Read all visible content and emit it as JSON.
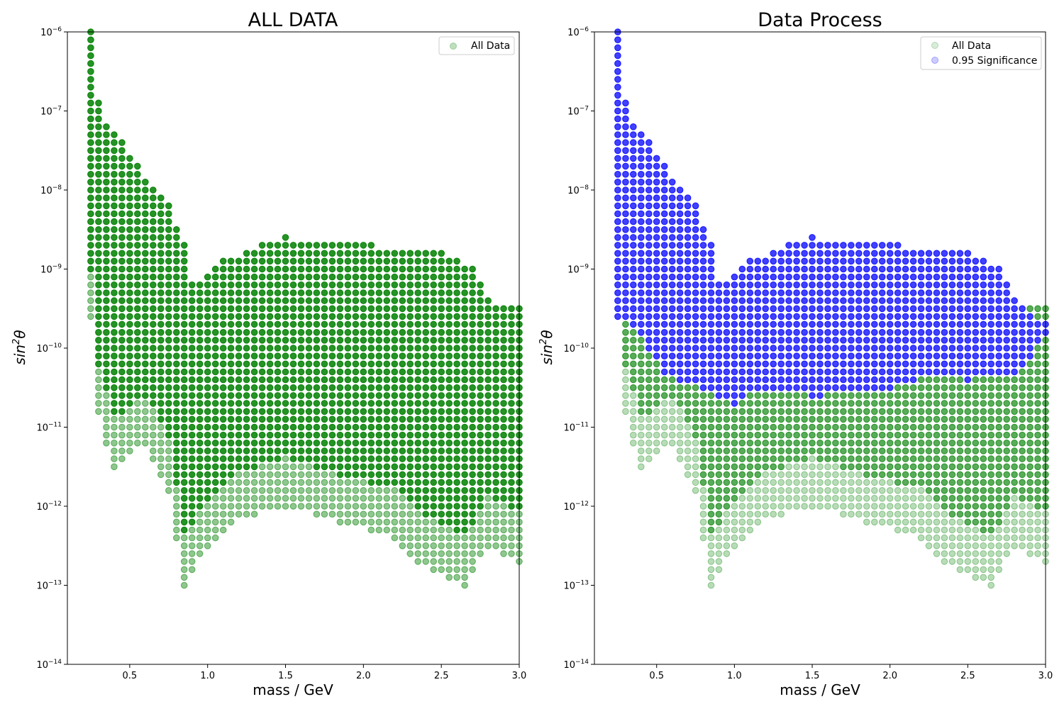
{
  "chart_data": [
    {
      "type": "scatter",
      "title": "ALL DATA",
      "xlabel": "mass / GeV",
      "ylabel": "sin²θ",
      "ylabel_parts": {
        "base": "sin",
        "sup": "2",
        "tail": "θ"
      },
      "yscale": "log",
      "xlim": [
        0.1,
        3.0
      ],
      "ylim": [
        1e-14,
        1e-06
      ],
      "xticks": [
        0.5,
        1.0,
        1.5,
        2.0,
        2.5,
        3.0
      ],
      "xtick_labels": [
        "0.5",
        "1.0",
        "1.5",
        "2.0",
        "2.5",
        "3.0"
      ],
      "ytick_exponents": [
        -14,
        -13,
        -12,
        -11,
        -10,
        -9,
        -8,
        -7,
        -6
      ],
      "ytick_base": "10",
      "grid": false,
      "legend_position": "top-right",
      "series": [
        {
          "name": "All Data",
          "color": "#008000",
          "x_range": [
            0.25,
            3.0
          ],
          "x_step": 0.05,
          "y_grid": "mantissas 1.0,1.3,1.6,2.0,2.5,3.2,4.0,5.0,6.3,7.9 per decade",
          "y_min_by_mass": [
            [
              0.25,
              2.5e-10
            ],
            [
              0.3,
              1.3e-11
            ],
            [
              0.4,
              3.2e-12
            ],
            [
              0.6,
              6.3e-12
            ],
            [
              0.75,
              1.6e-12
            ],
            [
              0.85,
              1e-13
            ],
            [
              0.95,
              2.5e-13
            ],
            [
              1.15,
              6.3e-13
            ],
            [
              1.5,
              1e-12
            ],
            [
              1.85,
              6.3e-13
            ],
            [
              2.2,
              4e-13
            ],
            [
              2.35,
              2e-13
            ],
            [
              2.65,
              1e-13
            ],
            [
              2.8,
              3.2e-13
            ],
            [
              3.0,
              2e-13
            ]
          ],
          "y_max_by_mass": [
            [
              0.25,
              1e-06
            ],
            [
              0.3,
              1.3e-07
            ],
            [
              0.35,
              6.3e-08
            ],
            [
              0.45,
              4e-08
            ],
            [
              0.55,
              2e-08
            ],
            [
              0.65,
              1e-08
            ],
            [
              0.75,
              6.3e-09
            ],
            [
              0.85,
              2e-09
            ],
            [
              0.9,
              6.3e-10
            ],
            [
              1.1,
              1.3e-09
            ],
            [
              1.5,
              2.5e-09
            ],
            [
              1.7,
              2e-09
            ],
            [
              2.0,
              2e-09
            ],
            [
              2.5,
              1.6e-09
            ],
            [
              2.7,
              1e-09
            ],
            [
              2.8,
              4e-10
            ],
            [
              3.0,
              3.2e-10
            ]
          ]
        }
      ]
    },
    {
      "type": "scatter",
      "title": "Data Process",
      "xlabel": "mass / GeV",
      "ylabel": "sin²θ",
      "ylabel_parts": {
        "base": "sin",
        "sup": "2",
        "tail": "θ"
      },
      "yscale": "log",
      "xlim": [
        0.1,
        3.0
      ],
      "ylim": [
        1e-14,
        1e-06
      ],
      "xticks": [
        0.5,
        1.0,
        1.5,
        2.0,
        2.5,
        3.0
      ],
      "xtick_labels": [
        "0.5",
        "1.0",
        "1.5",
        "2.0",
        "2.5",
        "3.0"
      ],
      "ytick_exponents": [
        -14,
        -13,
        -12,
        -11,
        -10,
        -9,
        -8,
        -7,
        -6
      ],
      "ytick_base": "10",
      "grid": false,
      "legend_position": "top-right",
      "series": [
        {
          "name": "All Data",
          "color": "#008000",
          "x_range": [
            0.25,
            3.0
          ],
          "x_step": 0.05,
          "note_same_points_as_left_panel": true
        },
        {
          "name": "0.95 Significance",
          "color": "#0000ff",
          "x_range": [
            0.25,
            3.0
          ],
          "x_step": 0.05,
          "y_min_by_mass": [
            [
              0.25,
              2.5e-10
            ],
            [
              0.35,
              2e-10
            ],
            [
              0.45,
              1e-10
            ],
            [
              0.55,
              5e-11
            ],
            [
              0.65,
              4e-11
            ],
            [
              0.9,
              2.5e-11
            ],
            [
              1.0,
              2e-11
            ],
            [
              1.1,
              3.2e-11
            ],
            [
              1.5,
              2.5e-11
            ],
            [
              2.0,
              3.2e-11
            ],
            [
              2.3,
              5e-11
            ],
            [
              2.5,
              4e-11
            ],
            [
              2.8,
              5e-11
            ],
            [
              3.0,
              1.3e-10
            ]
          ],
          "y_max_by_mass": [
            [
              0.25,
              1e-06
            ],
            [
              0.3,
              1.3e-07
            ],
            [
              0.35,
              6.3e-08
            ],
            [
              0.45,
              4e-08
            ],
            [
              0.55,
              2e-08
            ],
            [
              0.65,
              1e-08
            ],
            [
              0.75,
              6.3e-09
            ],
            [
              0.85,
              2e-09
            ],
            [
              0.9,
              6.3e-10
            ],
            [
              1.1,
              1.3e-09
            ],
            [
              1.5,
              2.5e-09
            ],
            [
              1.7,
              2e-09
            ],
            [
              2.0,
              2e-09
            ],
            [
              2.5,
              1.6e-09
            ],
            [
              2.7,
              1e-09
            ],
            [
              2.8,
              4e-10
            ],
            [
              3.0,
              2e-10
            ]
          ]
        }
      ]
    }
  ]
}
